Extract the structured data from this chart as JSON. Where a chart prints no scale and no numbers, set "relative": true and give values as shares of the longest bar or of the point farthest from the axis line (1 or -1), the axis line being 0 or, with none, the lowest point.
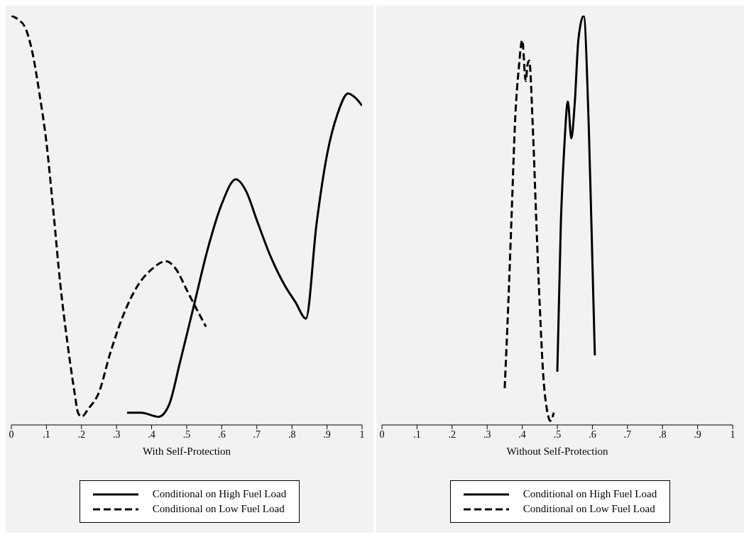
{
  "chart_data": [
    {
      "type": "line",
      "relative": true,
      "xlabel": "With Self-Protection",
      "xlim": [
        0,
        1
      ],
      "xticks": [
        {
          "value": 0,
          "label": "0"
        },
        {
          "value": 0.1,
          "label": ".1"
        },
        {
          "value": 0.2,
          "label": ".2"
        },
        {
          "value": 0.3,
          "label": ".3"
        },
        {
          "value": 0.4,
          "label": ".4"
        },
        {
          "value": 0.5,
          "label": ".5"
        },
        {
          "value": 0.6,
          "label": ".6"
        },
        {
          "value": 0.7,
          "label": ".7"
        },
        {
          "value": 0.8,
          "label": ".8"
        },
        {
          "value": 0.9,
          "label": ".9"
        },
        {
          "value": 1,
          "label": "1"
        }
      ],
      "legend": "bottom",
      "grid": false,
      "marker": "none",
      "series": [
        {
          "name": "Conditional on High Fuel Load",
          "color": "#000000",
          "line_style": "solid",
          "x": [
            0.33,
            0.37,
            0.42,
            0.45,
            0.48,
            0.52,
            0.56,
            0.6,
            0.64,
            0.67,
            0.7,
            0.74,
            0.78,
            0.81,
            0.84,
            0.87,
            0.9,
            0.93,
            0.96,
            0.98,
            1.0
          ],
          "values": [
            0.03,
            0.03,
            0.02,
            0.05,
            0.15,
            0.29,
            0.43,
            0.54,
            0.6,
            0.57,
            0.5,
            0.41,
            0.34,
            0.3,
            0.26,
            0.49,
            0.66,
            0.76,
            0.81,
            0.8,
            0.78
          ]
        },
        {
          "name": "Conditional on Low Fuel Load",
          "color": "#000000",
          "line_style": "dashed",
          "x": [
            0.0,
            0.02,
            0.04,
            0.06,
            0.08,
            0.1,
            0.12,
            0.14,
            0.16,
            0.18,
            0.19,
            0.2,
            0.22,
            0.25,
            0.28,
            0.32,
            0.36,
            0.4,
            0.44,
            0.47,
            0.5,
            0.53,
            0.555
          ],
          "values": [
            1.0,
            0.99,
            0.97,
            0.91,
            0.81,
            0.69,
            0.52,
            0.34,
            0.2,
            0.08,
            0.03,
            0.02,
            0.04,
            0.08,
            0.17,
            0.27,
            0.34,
            0.38,
            0.4,
            0.38,
            0.33,
            0.28,
            0.24
          ]
        }
      ]
    },
    {
      "type": "line",
      "relative": true,
      "xlabel": "Without Self-Protection",
      "xlim": [
        0,
        1
      ],
      "xticks": [
        {
          "value": 0,
          "label": "0"
        },
        {
          "value": 0.1,
          "label": ".1"
        },
        {
          "value": 0.2,
          "label": ".2"
        },
        {
          "value": 0.3,
          "label": ".3"
        },
        {
          "value": 0.4,
          "label": ".4"
        },
        {
          "value": 0.5,
          "label": ".5"
        },
        {
          "value": 0.6,
          "label": ".6"
        },
        {
          "value": 0.7,
          "label": ".7"
        },
        {
          "value": 0.8,
          "label": ".8"
        },
        {
          "value": 0.9,
          "label": ".9"
        },
        {
          "value": 1,
          "label": "1"
        }
      ],
      "legend": "bottom",
      "grid": false,
      "marker": "none",
      "series": [
        {
          "name": "Conditional on High Fuel Load",
          "color": "#000000",
          "line_style": "solid",
          "x": [
            0.5,
            0.51,
            0.52,
            0.53,
            0.54,
            0.55,
            0.56,
            0.575,
            0.59,
            0.6,
            0.607
          ],
          "values": [
            0.13,
            0.49,
            0.68,
            0.79,
            0.7,
            0.79,
            0.94,
            1.0,
            0.72,
            0.4,
            0.17
          ]
        },
        {
          "name": "Conditional on Low Fuel Load",
          "color": "#000000",
          "line_style": "dashed",
          "x": [
            0.35,
            0.36,
            0.37,
            0.38,
            0.39,
            0.4,
            0.41,
            0.415,
            0.42,
            0.43,
            0.44,
            0.45,
            0.46,
            0.47,
            0.48,
            0.49
          ],
          "values": [
            0.09,
            0.29,
            0.52,
            0.75,
            0.87,
            0.94,
            0.84,
            0.88,
            0.89,
            0.73,
            0.5,
            0.29,
            0.12,
            0.04,
            0.01,
            0.03
          ]
        }
      ]
    }
  ]
}
